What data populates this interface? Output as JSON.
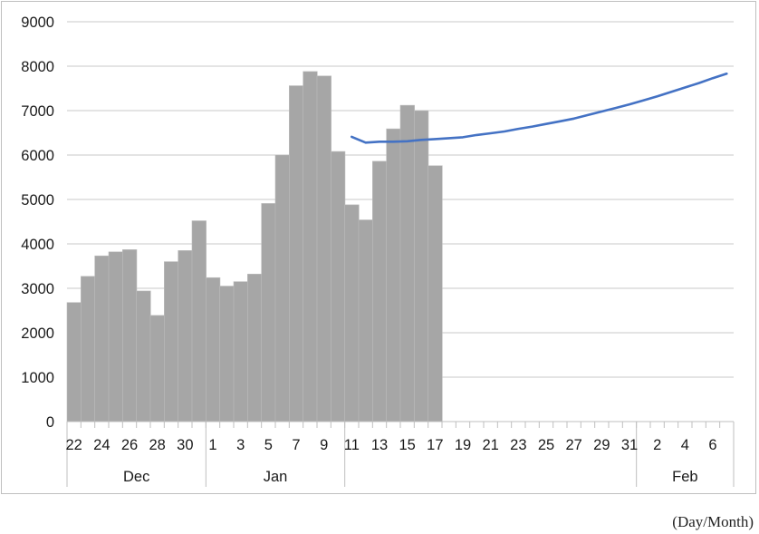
{
  "chart_data": {
    "type": "bar",
    "ylim": [
      0,
      9000
    ],
    "y_ticks": [
      0,
      1000,
      2000,
      3000,
      4000,
      5000,
      6000,
      7000,
      8000,
      9000
    ],
    "grid": "horizontal",
    "day_labels": [
      "22",
      "23",
      "24",
      "25",
      "26",
      "27",
      "28",
      "29",
      "30",
      "31",
      "1",
      "2",
      "3",
      "4",
      "5",
      "6",
      "7",
      "8",
      "9",
      "10",
      "11",
      "12",
      "13",
      "14",
      "15",
      "16",
      "17",
      "18",
      "19",
      "20",
      "21",
      "22",
      "23",
      "24",
      "25",
      "26",
      "27",
      "28",
      "29",
      "30",
      "31",
      "1",
      "2",
      "3",
      "4",
      "5",
      "6",
      "7"
    ],
    "visible_tick_labels": [
      "22",
      "24",
      "26",
      "28",
      "30",
      "1",
      "3",
      "5",
      "7",
      "9",
      "11",
      "13",
      "15",
      "17",
      "19",
      "21",
      "23",
      "25",
      "27",
      "29",
      "31",
      "2",
      "4",
      "6"
    ],
    "months": [
      {
        "label": "Dec",
        "start_index": 0,
        "end_index": 10
      },
      {
        "label": "Jan",
        "start_index": 10,
        "end_index": 20
      },
      {
        "label": "",
        "start_index": 20,
        "end_index": 41
      },
      {
        "label": "Feb",
        "start_index": 41,
        "end_index": 48
      }
    ],
    "series": [
      {
        "kind": "bar",
        "color": "#a6a6a6",
        "values": [
          2680,
          3270,
          3730,
          3820,
          3870,
          2940,
          2390,
          3600,
          3850,
          4520,
          3240,
          3050,
          3150,
          3320,
          4910,
          6000,
          7560,
          7880,
          7780,
          6080,
          4880,
          4540,
          5860,
          6590,
          7120,
          7000,
          5760
        ]
      },
      {
        "kind": "line",
        "color": "#4472c4",
        "start_index": 20,
        "values": [
          6410,
          6280,
          6300,
          6300,
          6310,
          6340,
          6360,
          6380,
          6400,
          6450,
          6490,
          6530,
          6590,
          6640,
          6700,
          6760,
          6820,
          6900,
          6980,
          7060,
          7140,
          7230,
          7320,
          7420,
          7520,
          7620,
          7730,
          7830
        ]
      }
    ]
  },
  "unit_note": "(Day/Month)"
}
